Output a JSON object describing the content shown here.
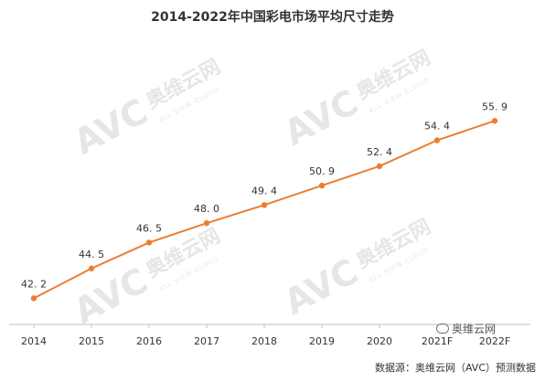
{
  "title": "2014-2022年中国彩电市场平均尺寸走势",
  "source_note": "数据源：奥维云网（AVC）预测数据",
  "wechat_label": "奥维云网",
  "watermark": {
    "brand_cn": "奥维云网",
    "brand_logo": "AVC",
    "brand_en": "ALL VIEW CLOUD"
  },
  "colors": {
    "line": "#ED7D31",
    "point": "#ED7D31",
    "axis": "#bfbfbf",
    "watermark": "#e6e6e6"
  },
  "chart_data": {
    "type": "line",
    "title": "2014-2022年中国彩电市场平均尺寸走势",
    "categories": [
      "2014",
      "2015",
      "2016",
      "2017",
      "2018",
      "2019",
      "2020",
      "2021F",
      "2022F"
    ],
    "series": [
      {
        "values": [
          42.2,
          44.5,
          46.5,
          48.0,
          49.4,
          50.9,
          52.4,
          54.4,
          55.9
        ],
        "labels": [
          "42. 2",
          "44. 5",
          "46. 5",
          "48. 0",
          "49. 4",
          "50. 9",
          "52. 4",
          "54. 4",
          "55. 9"
        ]
      }
    ],
    "ylim": [
      37,
      61
    ],
    "grid": false,
    "legend": "none",
    "xlabel": "",
    "ylabel": ""
  }
}
